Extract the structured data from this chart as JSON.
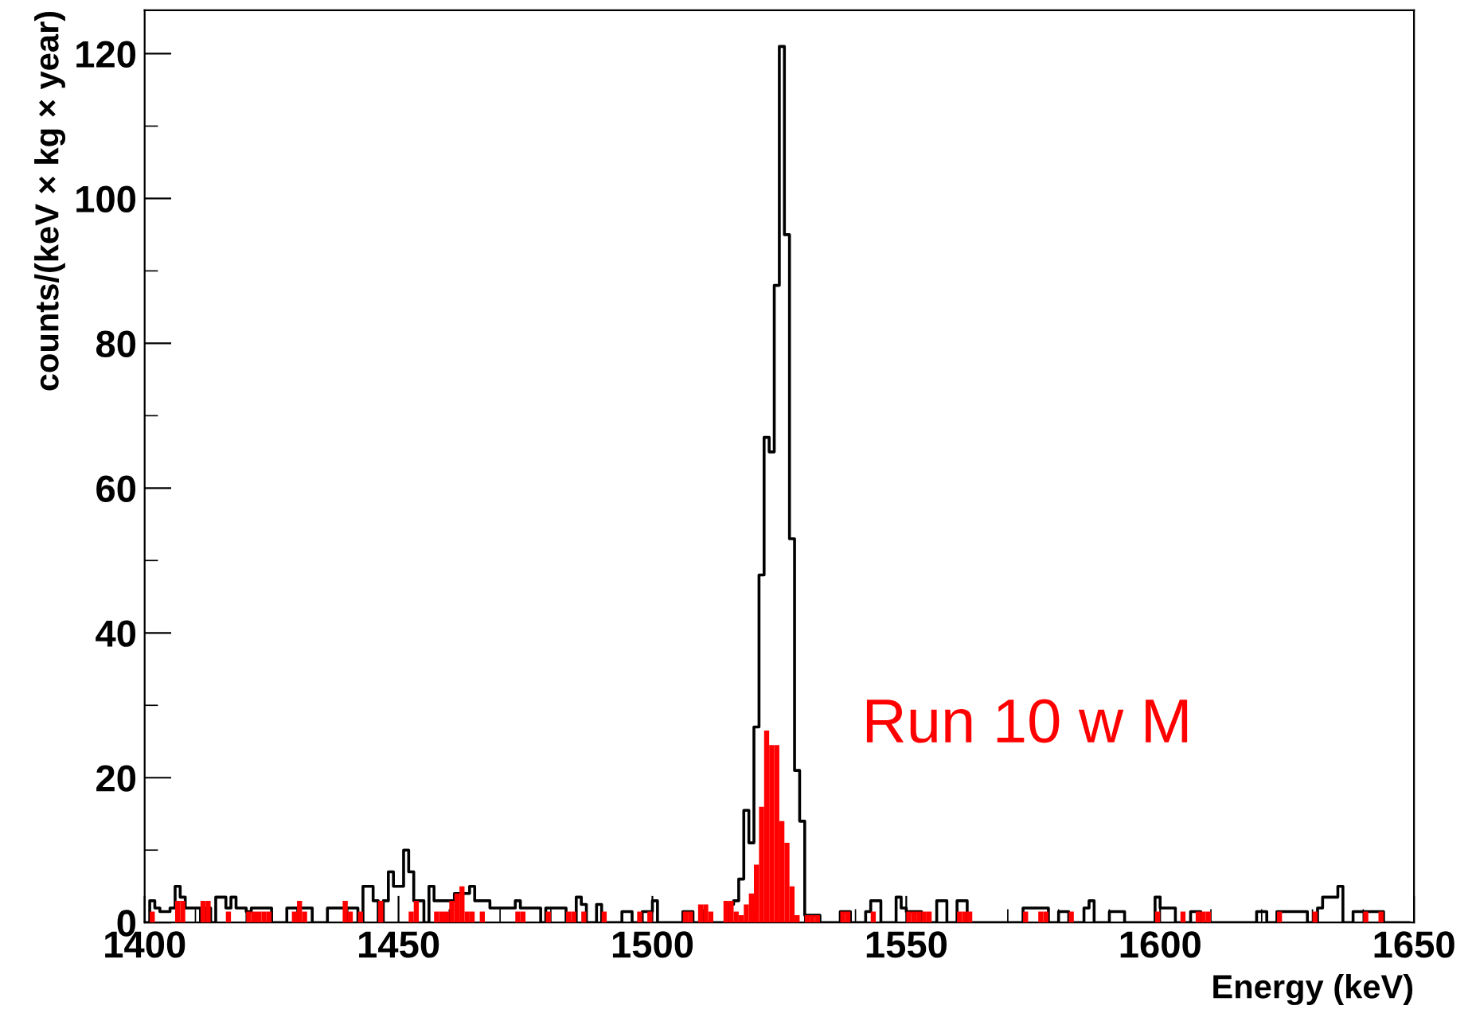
{
  "chart_data": {
    "type": "histogram",
    "xlabel": "Energy (keV)",
    "ylabel": "counts/(keV × kg × year)",
    "bins": [
      1400,
      1401,
      1402,
      1403,
      1404,
      1405,
      1406,
      1407,
      1408,
      1409,
      1410,
      1411,
      1412,
      1413,
      1414,
      1415,
      1416,
      1417,
      1418,
      1419,
      1420,
      1421,
      1422,
      1423,
      1424,
      1425,
      1426,
      1427,
      1428,
      1429,
      1430,
      1431,
      1432,
      1433,
      1434,
      1435,
      1436,
      1437,
      1438,
      1439,
      1440,
      1441,
      1442,
      1443,
      1444,
      1445,
      1446,
      1447,
      1448,
      1449,
      1450,
      1451,
      1452,
      1453,
      1454,
      1455,
      1456,
      1457,
      1458,
      1459,
      1460,
      1461,
      1462,
      1463,
      1464,
      1465,
      1466,
      1467,
      1468,
      1469,
      1470,
      1471,
      1472,
      1473,
      1474,
      1475,
      1476,
      1477,
      1478,
      1479,
      1480,
      1481,
      1482,
      1483,
      1484,
      1485,
      1486,
      1487,
      1488,
      1489,
      1490,
      1491,
      1492,
      1493,
      1494,
      1495,
      1496,
      1497,
      1498,
      1499,
      1500,
      1501,
      1502,
      1503,
      1504,
      1505,
      1506,
      1507,
      1508,
      1509,
      1510,
      1511,
      1512,
      1513,
      1514,
      1515,
      1516,
      1517,
      1518,
      1519,
      1520,
      1521,
      1522,
      1523,
      1524,
      1525,
      1526,
      1527,
      1528,
      1529,
      1530,
      1531,
      1532,
      1533,
      1534,
      1535,
      1536,
      1537,
      1538,
      1539,
      1540,
      1541,
      1542,
      1543,
      1544,
      1545,
      1546,
      1547,
      1548,
      1549,
      1550,
      1551,
      1552,
      1553,
      1554,
      1555,
      1556,
      1557,
      1558,
      1559,
      1560,
      1561,
      1562,
      1563,
      1564,
      1565,
      1566,
      1567,
      1568,
      1569,
      1570,
      1571,
      1572,
      1573,
      1574,
      1575,
      1576,
      1577,
      1578,
      1579,
      1580,
      1581,
      1582,
      1583,
      1584,
      1585,
      1586,
      1587,
      1588,
      1589,
      1590,
      1591,
      1592,
      1593,
      1594,
      1595,
      1596,
      1597,
      1598,
      1599,
      1600,
      1601,
      1602,
      1603,
      1604,
      1605,
      1606,
      1607,
      1608,
      1609,
      1610,
      1611,
      1612,
      1613,
      1614,
      1615,
      1616,
      1617,
      1618,
      1619,
      1620,
      1621,
      1622,
      1623,
      1624,
      1625,
      1626,
      1627,
      1628,
      1629,
      1630,
      1631,
      1632,
      1633,
      1634,
      1635,
      1636,
      1637,
      1638,
      1639,
      1640,
      1641,
      1642,
      1643,
      1644,
      1645,
      1646,
      1647,
      1648,
      1649,
      1650
    ],
    "series": [
      {
        "type": "step",
        "color": "#000000",
        "x": [
          1400,
          1401,
          1402,
          1403,
          1404,
          1405,
          1406,
          1407,
          1408,
          1409,
          1410,
          1411,
          1412,
          1413,
          1414,
          1415,
          1416,
          1417,
          1418,
          1419,
          1420,
          1421,
          1422,
          1423,
          1424,
          1425,
          1426,
          1427,
          1428,
          1429,
          1430,
          1431,
          1432,
          1433,
          1434,
          1435,
          1436,
          1437,
          1438,
          1439,
          1440,
          1441,
          1442,
          1443,
          1444,
          1445,
          1446,
          1447,
          1448,
          1449,
          1450,
          1451,
          1452,
          1453,
          1454,
          1455,
          1456,
          1457,
          1458,
          1459,
          1460,
          1461,
          1462,
          1463,
          1464,
          1465,
          1466,
          1467,
          1468,
          1469,
          1470,
          1471,
          1472,
          1473,
          1474,
          1475,
          1476,
          1477,
          1478,
          1479,
          1480,
          1481,
          1482,
          1483,
          1484,
          1485,
          1486,
          1487,
          1488,
          1489,
          1490,
          1491,
          1492,
          1493,
          1494,
          1495,
          1496,
          1497,
          1498,
          1499,
          1500,
          1501,
          1502,
          1503,
          1504,
          1505,
          1506,
          1507,
          1508,
          1509,
          1510,
          1511,
          1512,
          1513,
          1514,
          1515,
          1516,
          1517,
          1518,
          1519,
          1520,
          1521,
          1522,
          1523,
          1524,
          1525,
          1526,
          1527,
          1528,
          1529,
          1530,
          1531,
          1532,
          1533,
          1534,
          1535,
          1536,
          1537,
          1538,
          1539,
          1540,
          1541,
          1542,
          1543,
          1544,
          1545,
          1546,
          1547,
          1548,
          1549,
          1550,
          1551,
          1552,
          1553,
          1554,
          1555,
          1556,
          1557,
          1558,
          1559,
          1560,
          1561,
          1562,
          1563,
          1564,
          1565,
          1566,
          1567,
          1568,
          1569,
          1570,
          1571,
          1572,
          1573,
          1574,
          1575,
          1576,
          1577,
          1578,
          1579,
          1580,
          1581,
          1582,
          1583,
          1584,
          1585,
          1586,
          1587,
          1588,
          1589,
          1590,
          1591,
          1592,
          1593,
          1594,
          1595,
          1596,
          1597,
          1598,
          1599,
          1600,
          1601,
          1602,
          1603,
          1604,
          1605,
          1606,
          1607,
          1608,
          1609,
          1610,
          1611,
          1612,
          1613,
          1614,
          1615,
          1616,
          1617,
          1618,
          1619,
          1620,
          1621,
          1622,
          1623,
          1624,
          1625,
          1626,
          1627,
          1628,
          1629,
          1630,
          1631,
          1632,
          1633,
          1634,
          1635,
          1636,
          1637,
          1638,
          1639,
          1640,
          1641,
          1642,
          1643,
          1644,
          1645,
          1646,
          1647,
          1648,
          1649
        ],
        "values": [
          0,
          3,
          2,
          1.5,
          1.5,
          2,
          5,
          3.5,
          2,
          2,
          2,
          0,
          2,
          0,
          3.5,
          3.5,
          2,
          3.5,
          2,
          2,
          1.5,
          2,
          2,
          2,
          2,
          0,
          0,
          0,
          2,
          2,
          2,
          2,
          2,
          0,
          0,
          0,
          2,
          2,
          2,
          2,
          2,
          2,
          0,
          5,
          5,
          3,
          0,
          3,
          7,
          5,
          5,
          10,
          7,
          3,
          3,
          0,
          5,
          3,
          3,
          3,
          3,
          4,
          4,
          4,
          5,
          3,
          3,
          3,
          2,
          2,
          2,
          2,
          2,
          3,
          2,
          2,
          2,
          2,
          0,
          2,
          2,
          2,
          2,
          0,
          0,
          3.5,
          2.5,
          0,
          0,
          2.5,
          0,
          0,
          0,
          0,
          1.5,
          1.5,
          0,
          0,
          1.5,
          1.5,
          3,
          0,
          0,
          0,
          0,
          0,
          1.5,
          1.5,
          0,
          0,
          0,
          0,
          0,
          0,
          0,
          2.5,
          3,
          6,
          15.5,
          11,
          27,
          48,
          67,
          65,
          88,
          121,
          95,
          53,
          21,
          14,
          1,
          1,
          1,
          0,
          0,
          0,
          0,
          1.5,
          1.5,
          0,
          0,
          0,
          1.5,
          3,
          3,
          0,
          0,
          0,
          3.5,
          2,
          1.5,
          1.5,
          1.5,
          0,
          0,
          0,
          3,
          3,
          0,
          0,
          3,
          3,
          0,
          0,
          0,
          0,
          0,
          0,
          0,
          0,
          0,
          0,
          0,
          2,
          2,
          2,
          2,
          2,
          0,
          0,
          1.5,
          1.5,
          0,
          0,
          0,
          2,
          3,
          0,
          0,
          0,
          1.5,
          1.5,
          1.5,
          0,
          0,
          0,
          0,
          0,
          0,
          3.5,
          2,
          2,
          2,
          0,
          0,
          0,
          1.5,
          1.5,
          0,
          0,
          0,
          0,
          0,
          0,
          0,
          0,
          0,
          0,
          0,
          1.5,
          1.5,
          0,
          0,
          1.5,
          1.5,
          1.5,
          1.5,
          1.5,
          1.5,
          0,
          0,
          2,
          3.5,
          3.5,
          3.5,
          5,
          0,
          0,
          1.5,
          1.5,
          1.5,
          1.5,
          1.5,
          1.5,
          0,
          0,
          0,
          0,
          0,
          0
        ]
      },
      {
        "name": "Run 10 w M",
        "color": "#ff0000",
        "values": [
          0,
          1.5,
          0,
          0,
          0,
          0,
          3,
          3,
          0,
          0,
          0,
          3,
          3,
          0,
          0,
          0,
          1.5,
          0,
          0,
          0,
          1.5,
          1.5,
          1.5,
          1.5,
          1.5,
          0,
          0,
          0,
          0,
          1.5,
          3,
          1.5,
          0,
          0,
          0,
          0,
          0,
          0,
          0,
          3,
          1.5,
          0,
          1.5,
          0,
          0,
          0,
          3,
          0,
          0,
          0,
          0,
          0,
          1.5,
          3,
          0,
          0,
          0,
          1.5,
          1.5,
          1.5,
          3,
          4,
          5,
          1.5,
          1.5,
          0,
          1.5,
          0,
          0,
          0,
          0,
          0,
          0,
          1.5,
          1.5,
          0,
          0,
          0,
          0,
          1.5,
          0,
          0,
          0,
          1.5,
          1.5,
          0,
          1.5,
          0,
          0,
          0,
          1.5,
          0,
          0,
          0,
          0,
          0,
          0,
          1.5,
          0,
          1.5,
          0,
          0,
          0,
          0,
          0,
          0,
          1.5,
          1.5,
          0,
          2.5,
          2.5,
          1.5,
          0,
          0,
          3,
          3,
          1.5,
          1,
          2.5,
          4,
          8,
          16,
          26.5,
          24.5,
          24.5,
          14,
          11,
          5,
          1,
          0,
          1,
          1,
          1,
          0,
          0,
          0,
          0,
          1.5,
          1.5,
          0,
          0,
          0,
          0,
          1.5,
          0,
          0,
          0,
          0,
          0,
          0,
          1.5,
          1.5,
          1.5,
          1.5,
          1.5,
          0,
          0,
          0,
          0,
          0,
          1.5,
          1.5,
          1.5,
          0,
          0,
          0,
          0,
          0,
          0,
          0,
          0,
          0,
          0,
          1.5,
          0,
          0,
          1.5,
          1.5,
          0,
          0,
          0,
          0,
          1.5,
          0,
          0,
          0,
          0,
          0,
          0,
          0,
          0,
          0,
          0,
          0,
          0,
          0,
          0,
          0,
          0,
          1.5,
          0,
          0,
          0,
          0,
          1.5,
          0,
          0,
          1.5,
          1.5,
          1.5,
          0,
          0,
          0,
          0,
          0,
          0,
          0,
          0,
          0,
          0,
          0,
          0,
          0,
          1.5,
          0,
          0,
          0,
          0,
          0,
          0,
          1.5,
          0,
          0,
          0,
          0,
          0,
          0,
          0,
          0,
          0,
          1.5,
          0,
          0,
          1.5,
          0,
          0,
          0,
          0,
          0,
          0
        ]
      }
    ],
    "xlim": [
      1400,
      1650
    ],
    "xticks": [
      1400,
      1450,
      1500,
      1550,
      1600,
      1650
    ],
    "ylim": [
      0,
      126
    ],
    "yticks": [
      0,
      20,
      40,
      60,
      80,
      100,
      120
    ],
    "grid": false,
    "legend": false
  }
}
